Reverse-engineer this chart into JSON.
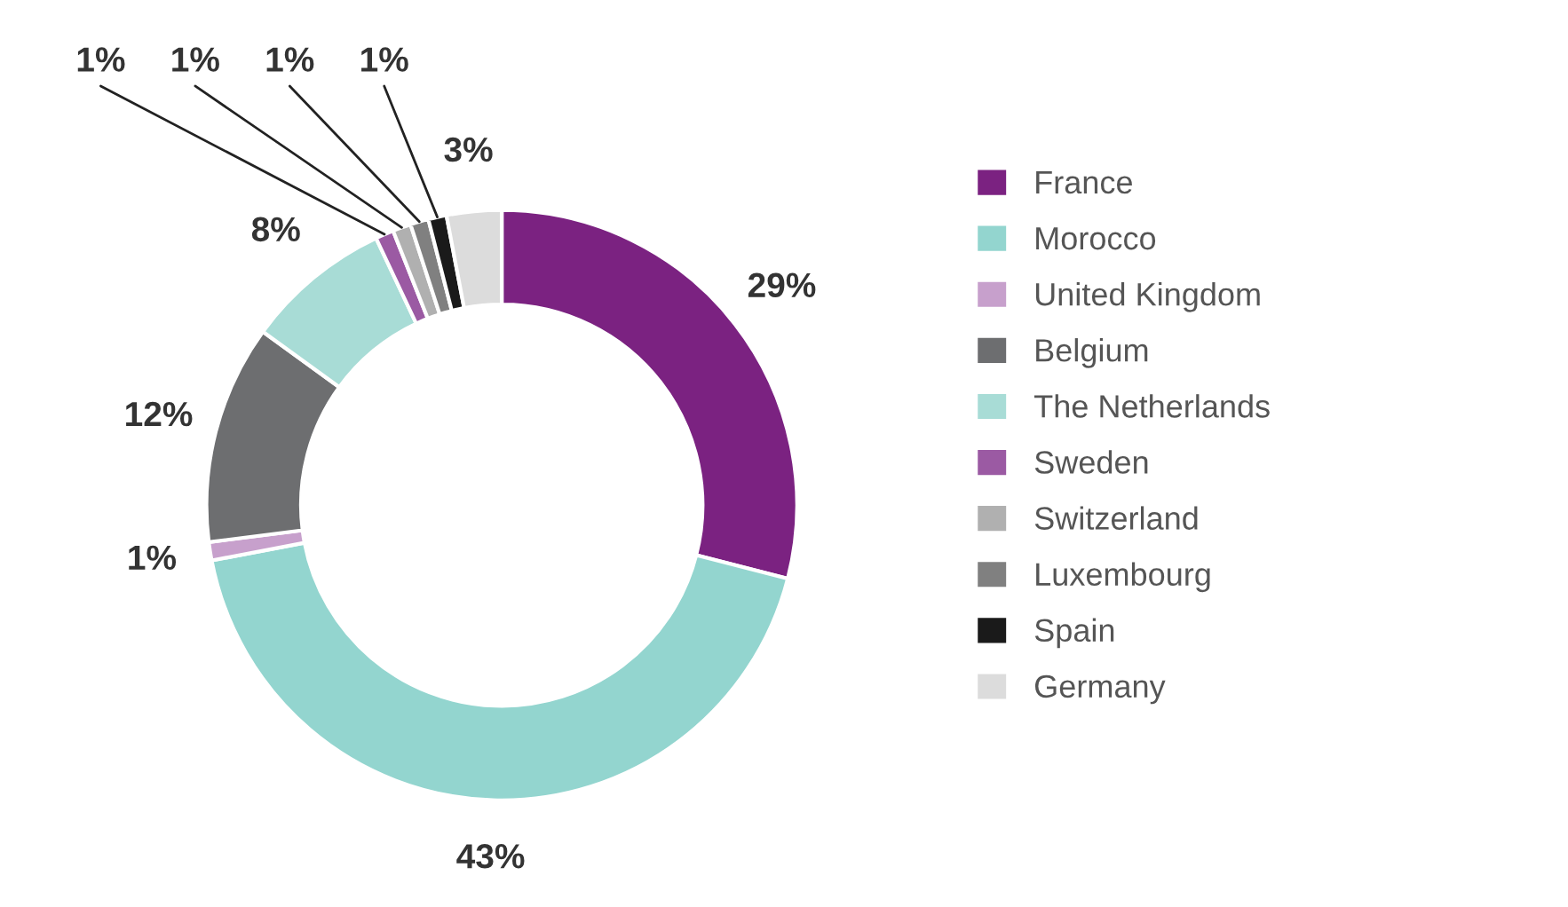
{
  "chart_data": {
    "type": "donut",
    "categories": [
      "France",
      "Morocco",
      "United Kingdom",
      "Belgium",
      "The Netherlands",
      "Sweden",
      "Switzerland",
      "Luxembourg",
      "Spain",
      "Germany"
    ],
    "values": [
      29,
      43,
      1,
      12,
      8,
      1,
      1,
      1,
      1,
      3
    ],
    "colors": [
      "#7b2281",
      "#93d5cf",
      "#c7a0cc",
      "#6d6e70",
      "#a8dcd6",
      "#9b5aa3",
      "#b0b0b0",
      "#808080",
      "#1a1a1a",
      "#dcdcdc"
    ],
    "value_labels": [
      "29%",
      "43%",
      "1%",
      "12%",
      "8%",
      "1%",
      "1%",
      "1%",
      "1%",
      "3%"
    ],
    "legend": "right"
  }
}
